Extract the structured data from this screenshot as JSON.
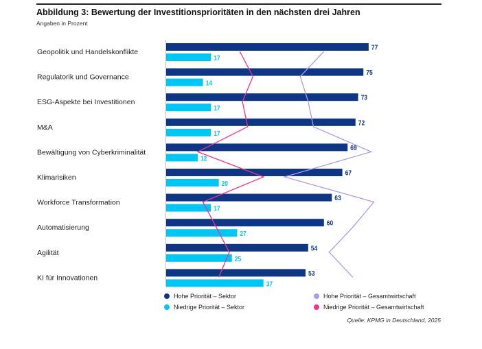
{
  "chart_data": {
    "type": "bar",
    "title": "Abbildung 3: Bewertung der Investitionsprioritäten in den nächsten drei Jahren",
    "subtitle": "Angaben in Prozent",
    "orientation": "horizontal",
    "categories": [
      "Geopolitik und Handelskonflikte",
      "Regulatorik und Governance",
      "ESG-Aspekte bei Investitionen",
      "M&A",
      "Bewältigung von Cyberkriminalität",
      "Klimarisiken",
      "Workforce Transformation",
      "Automatisierung",
      "Agilität",
      "KI für Innovationen"
    ],
    "series": [
      {
        "name": "Hohe Priorität – Sektor",
        "kind": "bar",
        "color": "#0f3585",
        "values": [
          77,
          75,
          73,
          72,
          69,
          67,
          63,
          60,
          54,
          53
        ]
      },
      {
        "name": "Niedrige Priorität – Sektor",
        "kind": "bar",
        "color": "#00c6f4",
        "values": [
          17,
          14,
          17,
          17,
          12,
          20,
          17,
          27,
          25,
          37
        ]
      },
      {
        "name": "Hohe Priorität – Gesamtwirtschaft",
        "kind": "line",
        "color": "#a99cf5",
        "values": [
          60,
          51,
          54,
          56,
          78,
          45,
          79,
          71,
          62,
          71
        ]
      },
      {
        "name": "Niedrige Priorität – Gesamtwirtschaft",
        "kind": "line",
        "color": "#f0348c",
        "values": [
          28,
          33,
          29,
          31,
          12,
          37,
          14,
          19,
          24,
          20
        ]
      }
    ],
    "xlim": [
      0,
      80
    ],
    "grid": false,
    "legend": "bottom",
    "source": "Quelle: KPMG in Deutschland, 2025"
  }
}
